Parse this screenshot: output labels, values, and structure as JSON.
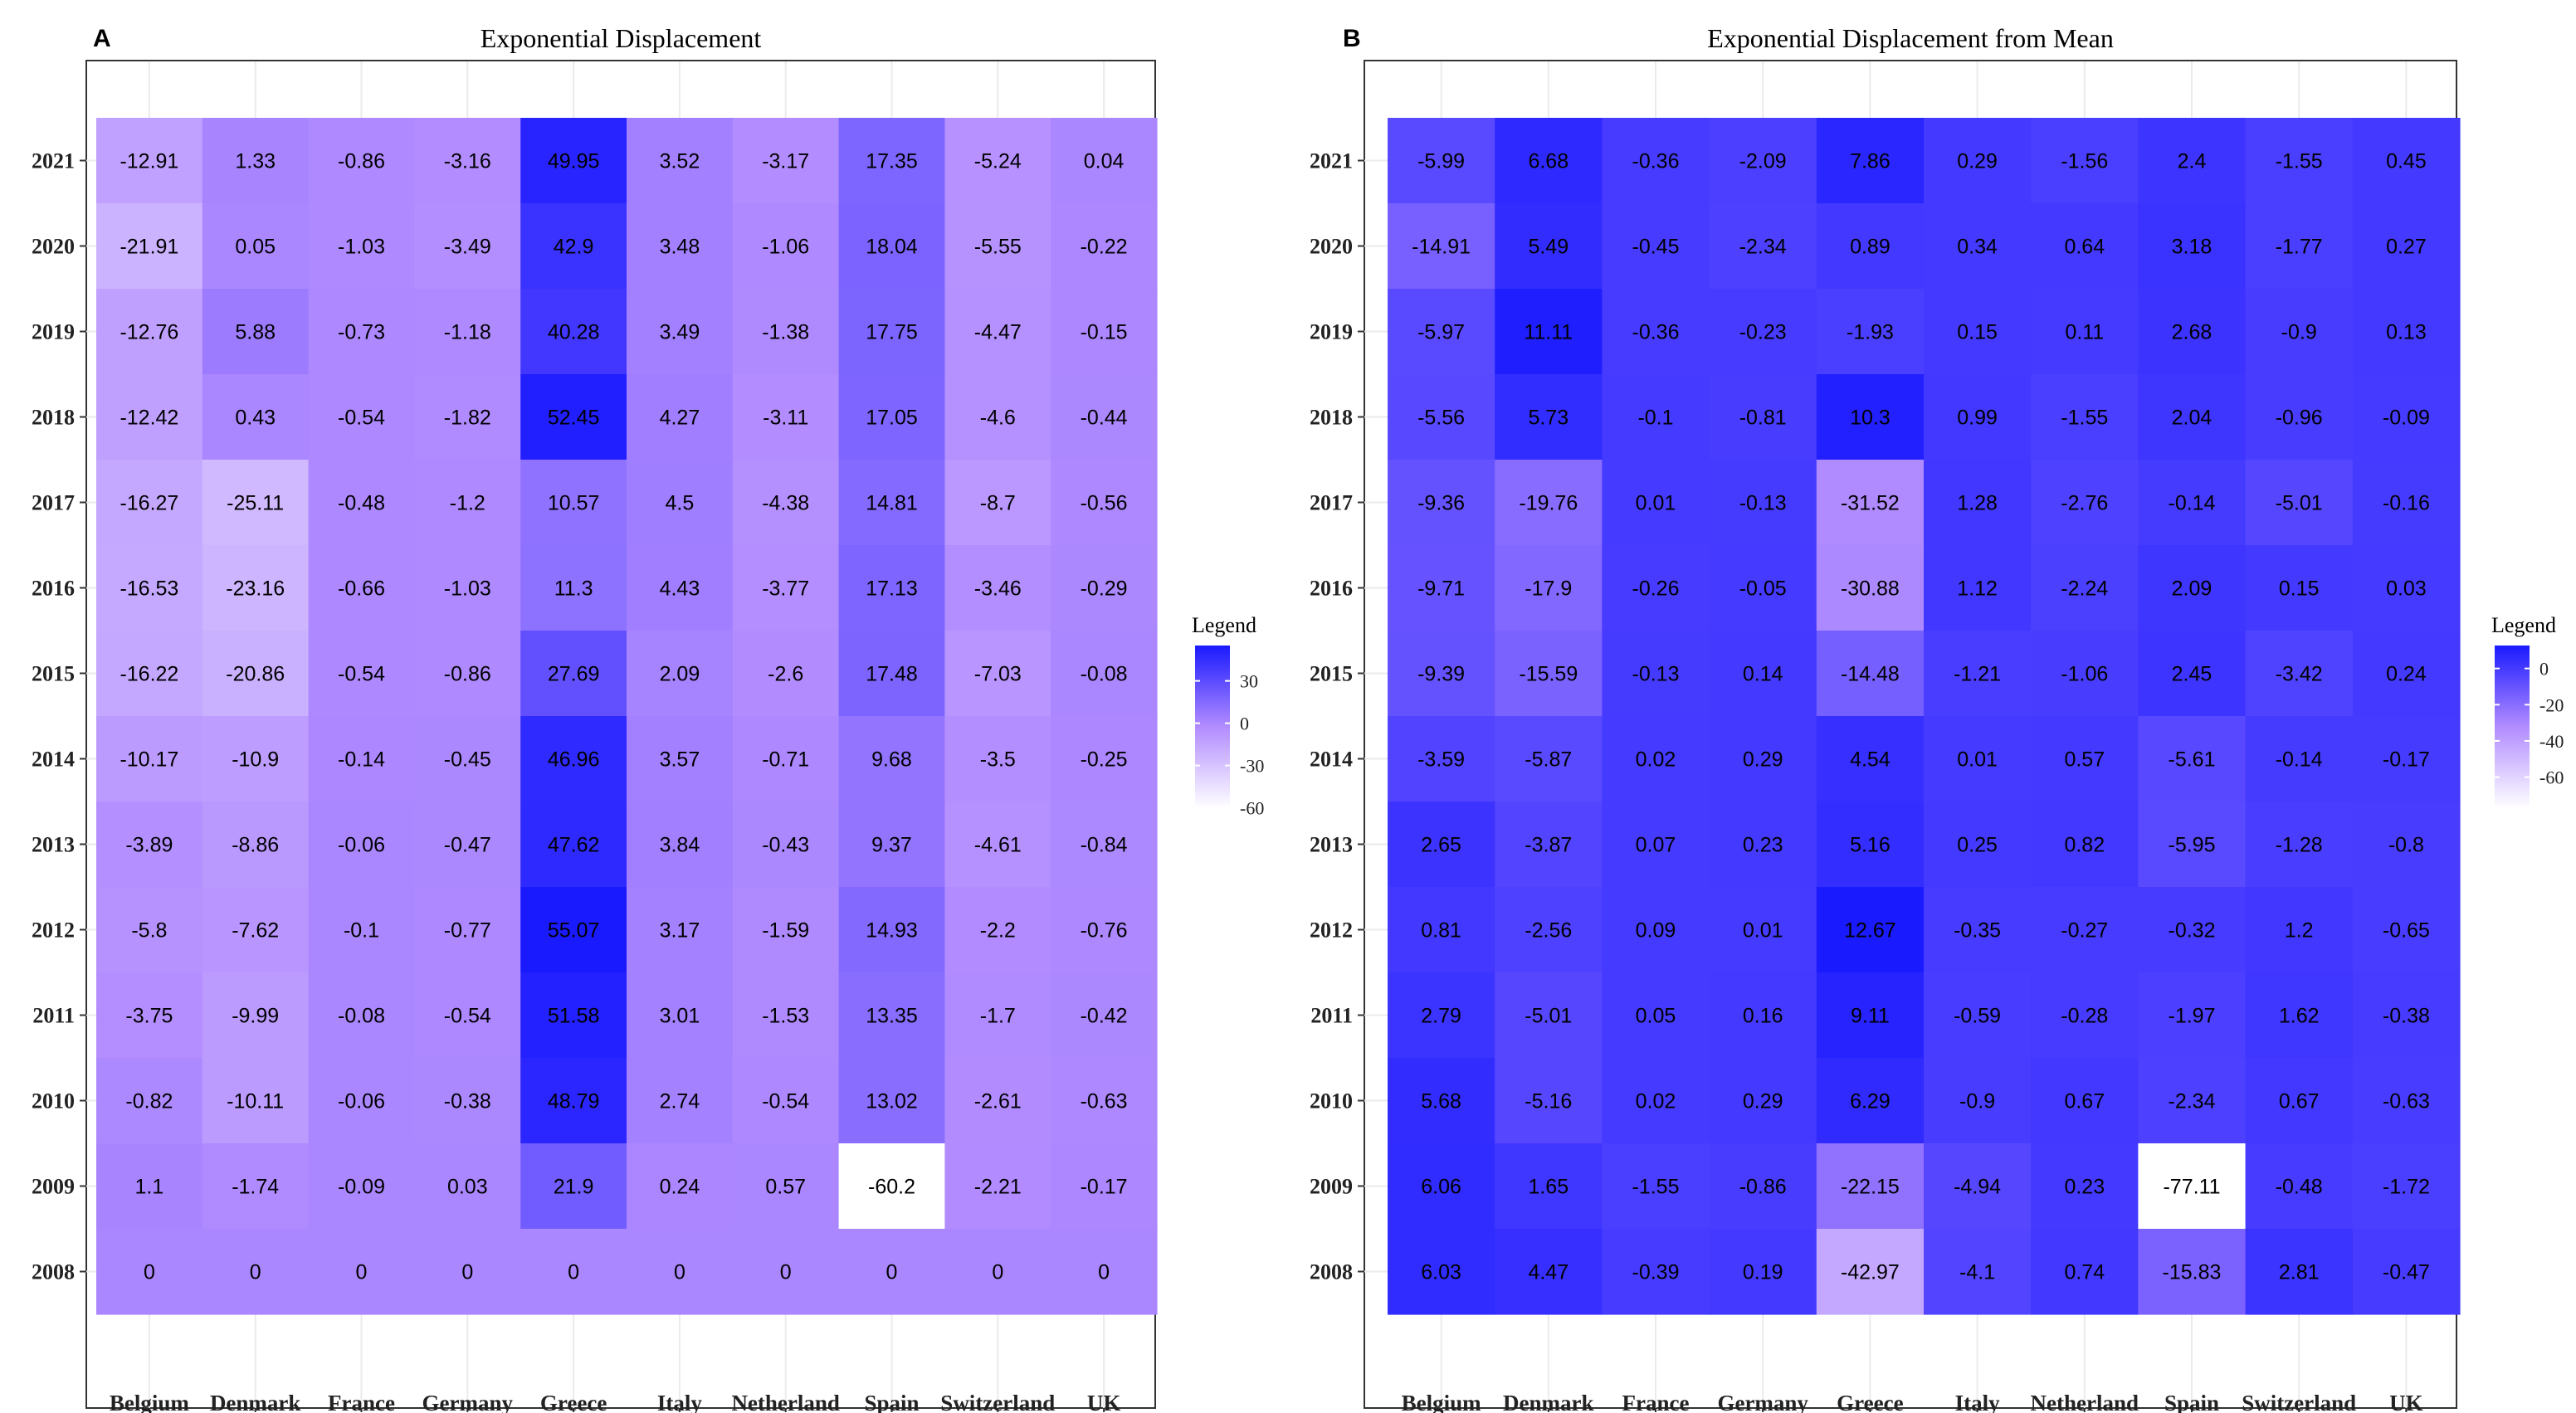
{
  "chart_data": [
    {
      "type": "heatmap",
      "panel_label": "A",
      "title": "Exponential Displacement",
      "xlabel": "",
      "ylabel": "",
      "categories_x": [
        "Belgium",
        "Denmark",
        "France",
        "Germany",
        "Greece",
        "Italy",
        "Netherland",
        "Spain",
        "Switzerland",
        "UK"
      ],
      "categories_y": [
        "2021",
        "2020",
        "2019",
        "2018",
        "2017",
        "2016",
        "2015",
        "2014",
        "2013",
        "2012",
        "2011",
        "2010",
        "2009",
        "2008"
      ],
      "values": [
        [
          -12.91,
          1.33,
          -0.86,
          -3.16,
          49.95,
          3.52,
          -3.17,
          17.35,
          -5.24,
          0.04
        ],
        [
          -21.91,
          0.05,
          -1.03,
          -3.49,
          42.9,
          3.48,
          -1.06,
          18.04,
          -5.55,
          -0.22
        ],
        [
          -12.76,
          5.88,
          -0.73,
          -1.18,
          40.28,
          3.49,
          -1.38,
          17.75,
          -4.47,
          -0.15
        ],
        [
          -12.42,
          0.43,
          -0.54,
          -1.82,
          52.45,
          4.27,
          -3.11,
          17.05,
          -4.6,
          -0.44
        ],
        [
          -16.27,
          -25.11,
          -0.48,
          -1.2,
          10.57,
          4.5,
          -4.38,
          14.81,
          -8.7,
          -0.56
        ],
        [
          -16.53,
          -23.16,
          -0.66,
          -1.03,
          11.3,
          4.43,
          -3.77,
          17.13,
          -3.46,
          -0.29
        ],
        [
          -16.22,
          -20.86,
          -0.54,
          -0.86,
          27.69,
          2.09,
          -2.6,
          17.48,
          -7.03,
          -0.08
        ],
        [
          -10.17,
          -10.9,
          -0.14,
          -0.45,
          46.96,
          3.57,
          -0.71,
          9.68,
          -3.5,
          -0.25
        ],
        [
          -3.89,
          -8.86,
          -0.06,
          -0.47,
          47.62,
          3.84,
          -0.43,
          9.37,
          -4.61,
          -0.84
        ],
        [
          -5.8,
          -7.62,
          -0.1,
          -0.77,
          55.07,
          3.17,
          -1.59,
          14.93,
          -2.2,
          -0.76
        ],
        [
          -3.75,
          -9.99,
          -0.08,
          -0.54,
          51.58,
          3.01,
          -1.53,
          13.35,
          -1.7,
          -0.42
        ],
        [
          -0.82,
          -10.11,
          -0.06,
          -0.38,
          48.79,
          2.74,
          -0.54,
          13.02,
          -2.61,
          -0.63
        ],
        [
          1.1,
          -1.74,
          -0.09,
          0.03,
          21.9,
          0.24,
          0.57,
          -60.2,
          -2.21,
          -0.17
        ],
        [
          0,
          0,
          0,
          0,
          0,
          0,
          0,
          0,
          0,
          0
        ]
      ],
      "color_range": [
        -60.2,
        55.07
      ],
      "legend": {
        "title": "Legend",
        "ticks": [
          30,
          0,
          -30,
          -60
        ],
        "tick_labels": [
          "30",
          "0",
          "-30",
          "-60"
        ],
        "low_color": "#ffffff",
        "high_color": "#1a1aff"
      }
    },
    {
      "type": "heatmap",
      "panel_label": "B",
      "title": "Exponential Displacement from Mean",
      "xlabel": "",
      "ylabel": "",
      "categories_x": [
        "Belgium",
        "Denmark",
        "France",
        "Germany",
        "Greece",
        "Italy",
        "Netherland",
        "Spain",
        "Switzerland",
        "UK"
      ],
      "categories_y": [
        "2021",
        "2020",
        "2019",
        "2018",
        "2017",
        "2016",
        "2015",
        "2014",
        "2013",
        "2012",
        "2011",
        "2010",
        "2009",
        "2008"
      ],
      "values": [
        [
          -5.99,
          6.68,
          -0.36,
          -2.09,
          7.86,
          0.29,
          -1.56,
          2.4,
          -1.55,
          0.45
        ],
        [
          -14.91,
          5.49,
          -0.45,
          -2.34,
          0.89,
          0.34,
          0.64,
          3.18,
          -1.77,
          0.27
        ],
        [
          -5.97,
          11.11,
          -0.36,
          -0.23,
          -1.93,
          0.15,
          0.11,
          2.68,
          -0.9,
          0.13
        ],
        [
          -5.56,
          5.73,
          -0.1,
          -0.81,
          10.3,
          0.99,
          -1.55,
          2.04,
          -0.96,
          -0.09
        ],
        [
          -9.36,
          -19.76,
          0.01,
          -0.13,
          -31.52,
          1.28,
          -2.76,
          -0.14,
          -5.01,
          -0.16
        ],
        [
          -9.71,
          -17.9,
          -0.26,
          -0.05,
          -30.88,
          1.12,
          -2.24,
          2.09,
          0.15,
          0.03
        ],
        [
          -9.39,
          -15.59,
          -0.13,
          0.14,
          -14.48,
          -1.21,
          -1.06,
          2.45,
          -3.42,
          0.24
        ],
        [
          -3.59,
          -5.87,
          0.02,
          0.29,
          4.54,
          0.01,
          0.57,
          -5.61,
          -0.14,
          -0.17
        ],
        [
          2.65,
          -3.87,
          0.07,
          0.23,
          5.16,
          0.25,
          0.82,
          -5.95,
          -1.28,
          -0.8
        ],
        [
          0.81,
          -2.56,
          0.09,
          0.01,
          12.67,
          -0.35,
          -0.27,
          -0.32,
          1.2,
          -0.65
        ],
        [
          2.79,
          -5.01,
          0.05,
          0.16,
          9.11,
          -0.59,
          -0.28,
          -1.97,
          1.62,
          -0.38
        ],
        [
          5.68,
          -5.16,
          0.02,
          0.29,
          6.29,
          -0.9,
          0.67,
          -2.34,
          0.67,
          -0.63
        ],
        [
          6.06,
          1.65,
          -1.55,
          -0.86,
          -22.15,
          -4.94,
          0.23,
          -77.11,
          -0.48,
          -1.72
        ],
        [
          6.03,
          4.47,
          -0.39,
          0.19,
          -42.97,
          -4.1,
          0.74,
          -15.83,
          2.81,
          -0.47
        ]
      ],
      "color_range": [
        -77.11,
        12.67
      ],
      "legend": {
        "title": "Legend",
        "ticks": [
          0,
          -20,
          -40,
          -60
        ],
        "tick_labels": [
          "0",
          "-20",
          "-40",
          "-60"
        ],
        "low_color": "#ffffff",
        "high_color": "#1a1aff"
      }
    }
  ]
}
